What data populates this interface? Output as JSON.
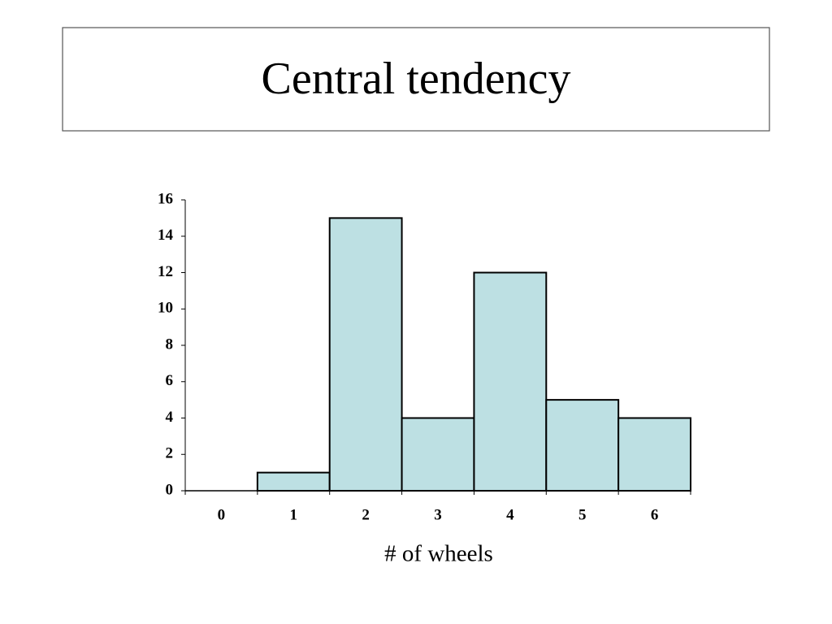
{
  "chart_data": {
    "type": "bar",
    "title": "Central tendency",
    "x_label": "# of wheels",
    "categories": [
      "0",
      "1",
      "2",
      "3",
      "4",
      "5",
      "6"
    ],
    "values": [
      0,
      1,
      15,
      4,
      12,
      5,
      4
    ],
    "color": "#bde0e3",
    "ylim": [
      0,
      16
    ],
    "yticks": [
      0,
      2,
      4,
      6,
      8,
      10,
      12,
      14,
      16
    ]
  }
}
